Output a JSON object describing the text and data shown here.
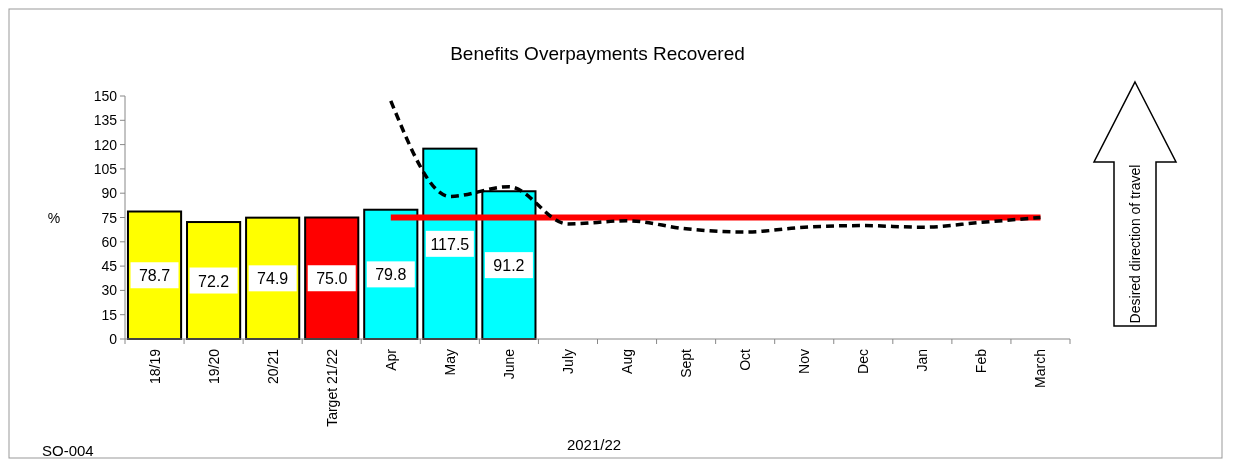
{
  "chart_data": {
    "type": "bar",
    "title": "Benefits Overpayments Recovered",
    "xlabel": "2021/22",
    "ylabel": "%",
    "categories": [
      "18/19",
      "19/20",
      "20/21",
      "Target 21/22",
      "Apr",
      "May",
      "June",
      "July",
      "Aug",
      "Sept",
      "Oct",
      "Nov",
      "Dec",
      "Jan",
      "Feb",
      "March"
    ],
    "series": [
      {
        "colors": [
          "#ffff00",
          "#ffff00",
          "#ffff00",
          "#ff0000",
          "#00ffff",
          "#00ffff",
          "#00ffff",
          null,
          null,
          null,
          null,
          null,
          null,
          null,
          null,
          null
        ],
        "values": [
          78.7,
          72.2,
          74.9,
          75.0,
          79.8,
          117.5,
          91.2,
          null,
          null,
          null,
          null,
          null,
          null,
          null,
          null,
          null
        ],
        "value_labels": [
          "78.7",
          "72.2",
          "74.9",
          "75.0",
          "79.8",
          "117.5",
          "91.2",
          null,
          null,
          null,
          null,
          null,
          null,
          null,
          null,
          null
        ]
      },
      {
        "type": "line",
        "color": "#ff0000",
        "line_style": "solid",
        "values": [
          null,
          null,
          null,
          null,
          75,
          75,
          75,
          75,
          75,
          75,
          75,
          75,
          75,
          75,
          75,
          75
        ]
      },
      {
        "type": "line",
        "color": "#000000",
        "line_style": "dashed",
        "values": [
          null,
          null,
          null,
          null,
          147,
          88,
          94,
          71,
          73,
          68,
          66,
          69,
          70,
          69,
          72,
          75
        ]
      }
    ],
    "ylim": [
      0,
      150
    ],
    "yticks": [
      0,
      15,
      30,
      45,
      60,
      75,
      90,
      105,
      120,
      135,
      150
    ],
    "grid": false,
    "annotations": [
      "SO-004",
      "Desired direction of travel"
    ]
  }
}
